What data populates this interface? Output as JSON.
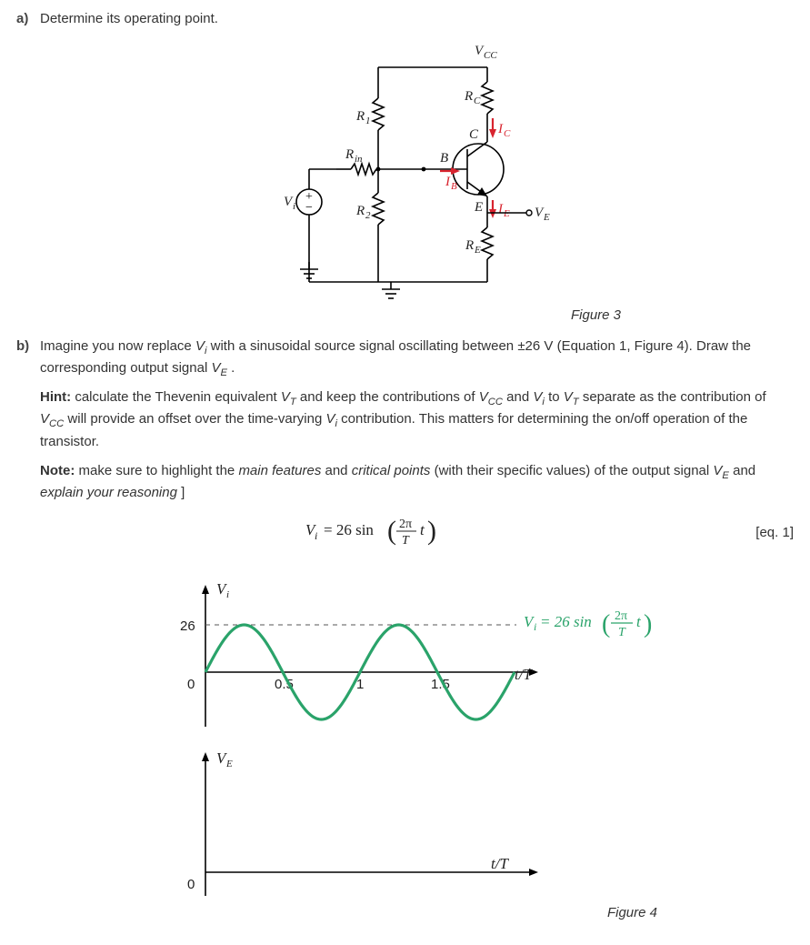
{
  "colors": {
    "text": "#333333",
    "bold": "#444444",
    "wire": "#000000",
    "red": "#d8242f",
    "green": "#2aa36a",
    "green_dash": "#2aa36a",
    "gray_dash": "#555555",
    "bg": "#ffffff"
  },
  "fonts": {
    "body_pt": 15,
    "label_pt": 15,
    "caption_pt": 15
  },
  "qa": {
    "label": "a)",
    "text": "Determine its operating point."
  },
  "figure3": {
    "caption": "Figure 3",
    "labels": {
      "Vcc": "V_CC",
      "Rc": "R_C",
      "R1": "R_1",
      "R2": "R_2",
      "Rin": "R_in",
      "Vi": "V_i",
      "RE": "R_E",
      "VE": "V_E",
      "C": "C",
      "B": "B",
      "E": "E",
      "Ic": "I_C",
      "Ib": "I_B",
      "Ie": "I_E"
    }
  },
  "qb": {
    "label": "b)",
    "p1_pre": "Imagine you now replace ",
    "p1_vi": "Vᵢ",
    "p1_mid": " with a sinusoidal source signal oscillating between ",
    "p1_pm": "±26 V",
    "p1_post1": " (Equation 1, Figure 4). Draw the corresponding output signal ",
    "p1_ve": "V_E",
    "p1_end": ".",
    "hint_label": "Hint:",
    "hint_text": " calculate the Thevenin equivalent V_T and keep the contributions of V_CC and Vᵢ to V_T separate as the contribution of V_CC will provide an offset over the time-varying Vᵢ contribution. This matters for determining the on/off operation of the transistor.",
    "note_label": "Note:",
    "note_text_1": " make sure to highlight the ",
    "note_em1": "main features",
    "note_text_2": " and ",
    "note_em2": "critical points",
    "note_text_3": " (with their specific values) of the output signal ",
    "note_ve": "V_E",
    "note_text_4": " and ",
    "note_em3": "explain your reasoning",
    "note_text_5": "]"
  },
  "equation": {
    "lhs": "Vᵢ = 26 sin",
    "arg": "(2π / T · t)",
    "label": "[eq. 1]"
  },
  "figure4": {
    "caption": "Figure 4",
    "vi_chart": {
      "type": "line",
      "y_label": "Vᵢ",
      "amplitude": 26,
      "y_tick": 26,
      "x_label": "t/T",
      "x_ticks": [
        0,
        0.5,
        1,
        1.5
      ],
      "xlim": [
        0,
        2.0
      ],
      "ylim": [
        -30,
        30
      ],
      "series_color": "#2aa36a",
      "line_width": 3,
      "dash_color": "#555555",
      "annotation": "Vᵢ = 26 sin(2π/T · t)",
      "annotation_color": "#2aa36a",
      "annotation_fontsize": 16
    },
    "ve_chart": {
      "type": "line",
      "y_label": "V_E",
      "x_label": "t/T",
      "y_tick0": 0,
      "xlim": [
        0,
        2.0
      ],
      "ylim": [
        -30,
        30
      ],
      "series_color": "#2aa36a"
    }
  }
}
